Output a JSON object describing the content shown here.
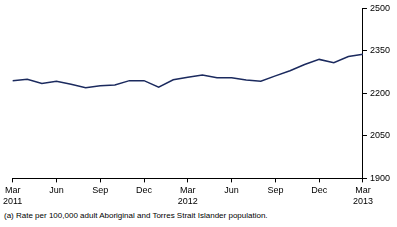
{
  "chart_data": {
    "type": "line",
    "categories": [
      "Mar 2011",
      null,
      null,
      "Jun",
      null,
      null,
      "Sep",
      null,
      null,
      "Dec",
      null,
      null,
      "Mar 2012",
      null,
      null,
      "Jun",
      null,
      null,
      "Sep",
      null,
      null,
      "Dec",
      null,
      null,
      "Mar 2013"
    ],
    "values": [
      2245,
      2250,
      2235,
      2243,
      2232,
      2220,
      2227,
      2230,
      2245,
      2245,
      2222,
      2248,
      2257,
      2265,
      2255,
      2255,
      2247,
      2243,
      2262,
      2280,
      2302,
      2320,
      2308,
      2330,
      2338
    ],
    "color": "#1b2a5e",
    "ylim": [
      1900,
      2500
    ],
    "yticks": [
      1900,
      2050,
      2200,
      2350,
      2500
    ],
    "grid": false,
    "footnote": "(a) Rate per 100,000 adult Aboriginal and Torres Strait Islander population."
  }
}
